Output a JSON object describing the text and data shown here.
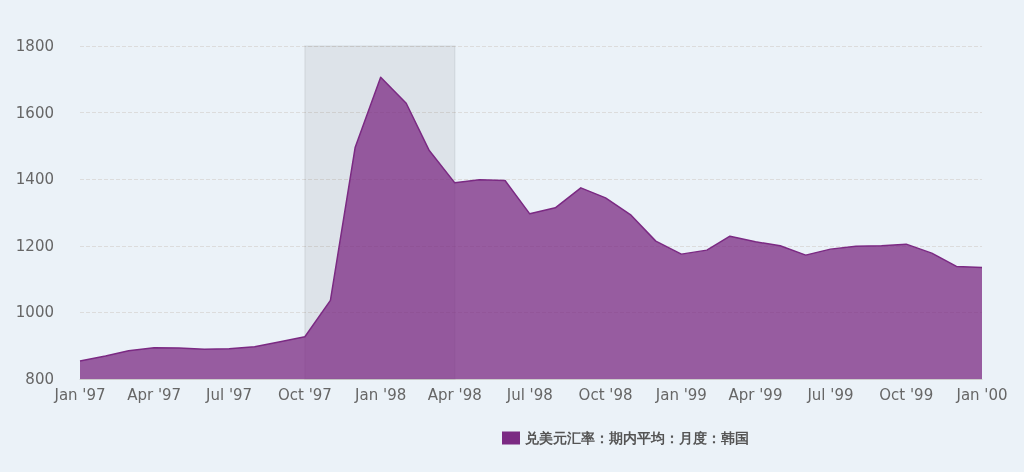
{
  "chart_data": {
    "type": "area",
    "x": [
      "1997-01",
      "1997-02",
      "1997-03",
      "1997-04",
      "1997-05",
      "1997-06",
      "1997-07",
      "1997-08",
      "1997-09",
      "1997-10",
      "1997-11",
      "1997-12",
      "1998-01",
      "1998-02",
      "1998-03",
      "1998-04",
      "1998-05",
      "1998-06",
      "1998-07",
      "1998-08",
      "1998-09",
      "1998-10",
      "1998-11",
      "1998-12",
      "1999-01",
      "1999-02",
      "1999-03",
      "1999-04",
      "1999-05",
      "1999-06",
      "1999-07",
      "1999-08",
      "1999-09",
      "1999-10",
      "1999-11",
      "1999-12",
      "2000-01"
    ],
    "series": [
      {
        "name": "兑美元汇率：期内平均：月度：韩国",
        "color": "#7b2a83",
        "values": [
          854,
          869,
          885,
          894,
          893,
          889,
          891,
          897,
          912,
          927,
          1036,
          1495,
          1706,
          1628,
          1486,
          1389,
          1398,
          1396,
          1296,
          1314,
          1374,
          1344,
          1292,
          1214,
          1175,
          1187,
          1229,
          1212,
          1200,
          1172,
          1190,
          1199,
          1200,
          1205,
          1178,
          1138,
          1135
        ]
      }
    ],
    "xlim": [
      "1997-01",
      "2000-01"
    ],
    "xticks": [
      {
        "value": "1997-01",
        "label": "Jan '97"
      },
      {
        "value": "1997-04",
        "label": "Apr '97"
      },
      {
        "value": "1997-07",
        "label": "Jul '97"
      },
      {
        "value": "1997-10",
        "label": "Oct '97"
      },
      {
        "value": "1998-01",
        "label": "Jan '98"
      },
      {
        "value": "1998-04",
        "label": "Apr '98"
      },
      {
        "value": "1998-07",
        "label": "Jul '98"
      },
      {
        "value": "1998-10",
        "label": "Oct '98"
      },
      {
        "value": "1999-01",
        "label": "Jan '99"
      },
      {
        "value": "1999-04",
        "label": "Apr '99"
      },
      {
        "value": "1999-07",
        "label": "Jul '99"
      },
      {
        "value": "1999-10",
        "label": "Oct '99"
      },
      {
        "value": "2000-01",
        "label": "Jan '00"
      }
    ],
    "ylim": [
      800,
      1800
    ],
    "yticks": [
      800,
      1000,
      1200,
      1400,
      1600,
      1800
    ],
    "grid": "y",
    "legend": "bottom right",
    "bands": [
      {
        "axis": "x",
        "from": "1997-10",
        "to": "1998-04",
        "color": "#000000"
      }
    ]
  }
}
